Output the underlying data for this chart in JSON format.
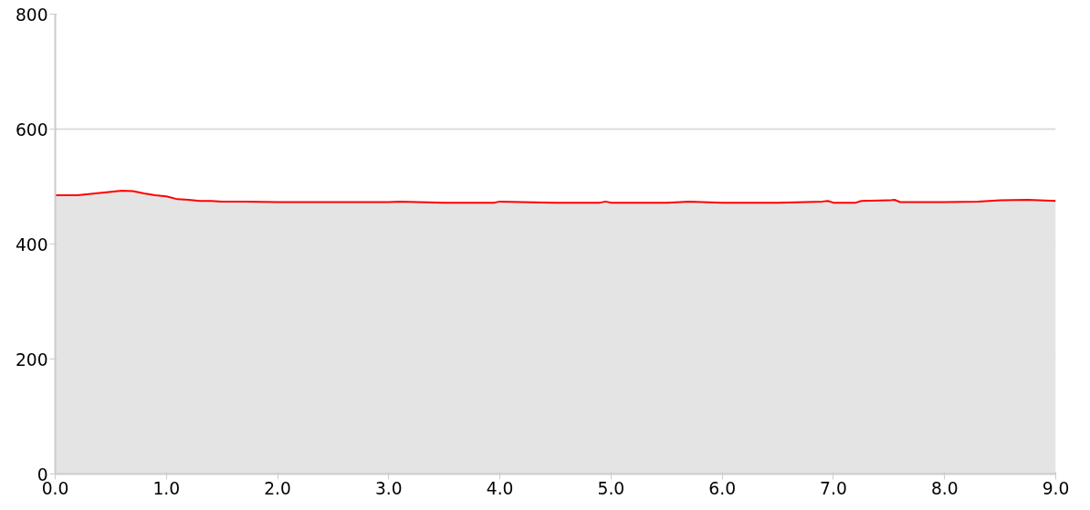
{
  "chart_data": {
    "type": "area",
    "x": [
      0,
      0.2,
      0.3,
      0.4,
      0.5,
      0.6,
      0.7,
      0.8,
      0.9,
      1.0,
      1.1,
      1.2,
      1.3,
      1.4,
      1.5,
      1.7,
      2.0,
      2.5,
      3.0,
      3.1,
      3.5,
      3.95,
      4.0,
      4.5,
      4.9,
      4.95,
      5.0,
      5.5,
      5.7,
      6.0,
      6.5,
      6.9,
      6.95,
      7.0,
      7.2,
      7.25,
      7.5,
      7.55,
      7.6,
      8.0,
      8.3,
      8.5,
      8.75,
      9.0
    ],
    "series": [
      {
        "color": "#ff0000",
        "values": [
          485,
          485,
          487,
          489,
          491,
          493,
          492,
          488,
          485,
          483,
          478,
          477,
          475,
          475,
          474,
          474,
          473,
          473,
          473,
          474,
          472,
          472,
          474,
          472,
          472,
          474,
          472,
          472,
          474,
          472,
          472,
          474,
          475,
          472,
          472,
          475,
          476,
          477,
          473,
          473,
          474,
          476,
          477,
          475
        ]
      }
    ],
    "xlim": [
      0,
      9
    ],
    "ylim": [
      0,
      800
    ],
    "xticks": [
      {
        "value": 0,
        "label": "0.0"
      },
      {
        "value": 1,
        "label": "1.0"
      },
      {
        "value": 2,
        "label": "2.0"
      },
      {
        "value": 3,
        "label": "3.0"
      },
      {
        "value": 4,
        "label": "4.0"
      },
      {
        "value": 5,
        "label": "5.0"
      },
      {
        "value": 6,
        "label": "6.0"
      },
      {
        "value": 7,
        "label": "7.0"
      },
      {
        "value": 8,
        "label": "8.0"
      },
      {
        "value": 9,
        "label": "9.0"
      }
    ],
    "yticks": [
      0,
      200,
      400,
      600,
      800
    ],
    "grid": "y"
  }
}
